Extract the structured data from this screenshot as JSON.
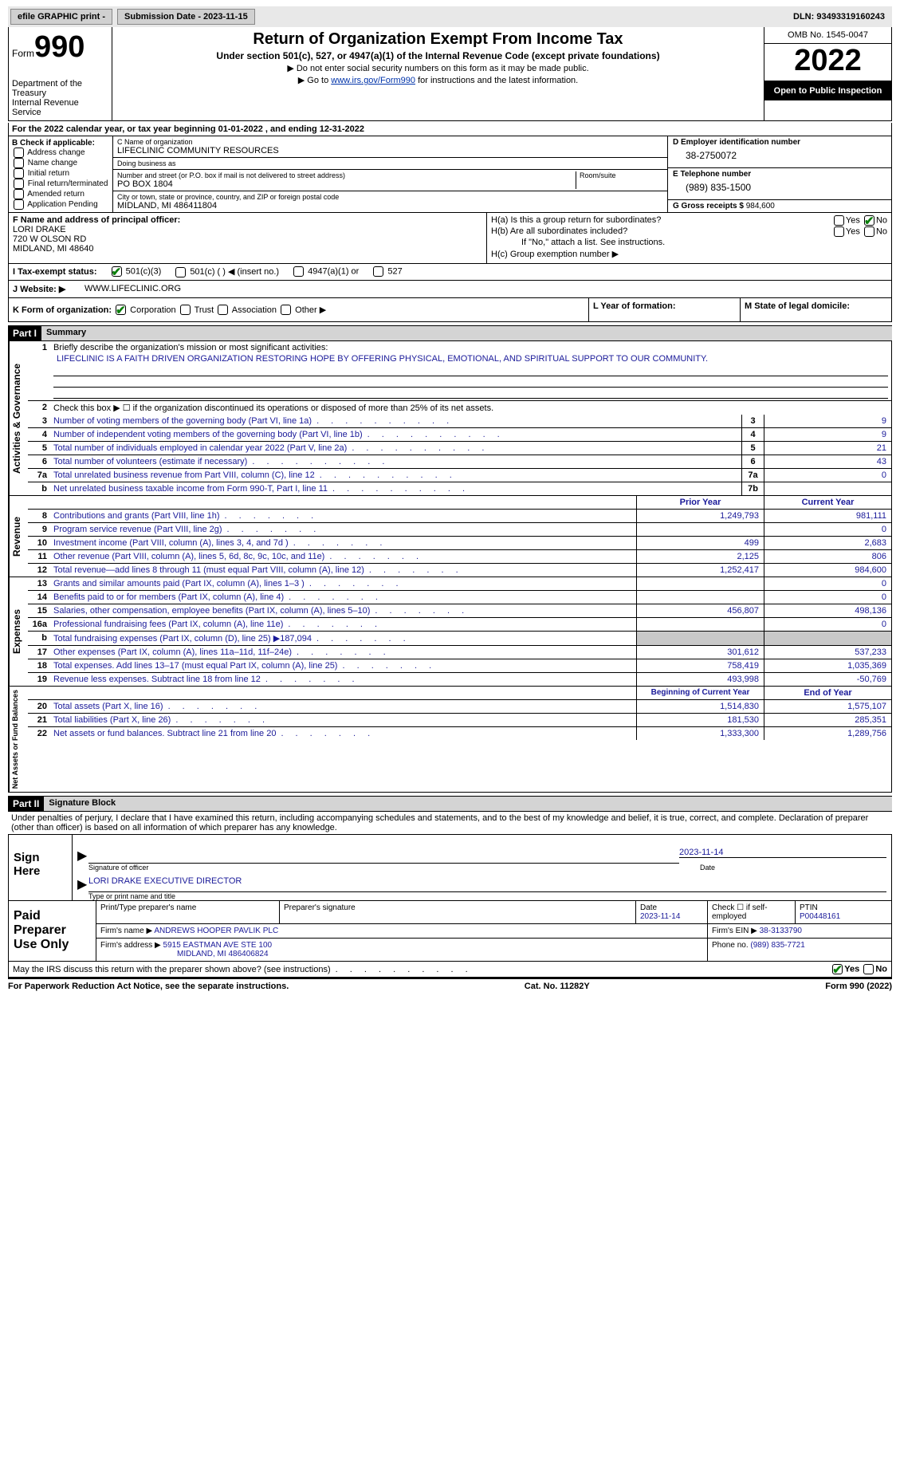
{
  "top": {
    "efile": "efile GRAPHIC print - ",
    "submission_label": "Submission Date - 2023-11-15",
    "dln": "DLN: 93493319160243"
  },
  "header": {
    "form_word": "Form",
    "form_no": "990",
    "title": "Return of Organization Exempt From Income Tax",
    "sub1": "Under section 501(c), 527, or 4947(a)(1) of the Internal Revenue Code (except private foundations)",
    "sub2": "▶ Do not enter social security numbers on this form as it may be made public.",
    "sub3_a": "▶ Go to ",
    "sub3_link": "www.irs.gov/Form990",
    "sub3_b": " for instructions and the latest information.",
    "dept": "Department of the Treasury\nInternal Revenue Service",
    "omb": "OMB No. 1545-0047",
    "year": "2022",
    "inspect": "Open to Public Inspection"
  },
  "A": "For the 2022 calendar year, or tax year beginning 01-01-2022     , and ending 12-31-2022",
  "B": {
    "hd": "B Check if applicable:",
    "items": [
      "Address change",
      "Name change",
      "Initial return",
      "Final return/terminated",
      "Amended return",
      "Application Pending"
    ]
  },
  "C": {
    "name_lbl": "C Name of organization",
    "name": "LIFECLINIC COMMUNITY RESOURCES",
    "dba_lbl": "Doing business as",
    "dba": "",
    "street_lbl": "Number and street (or P.O. box if mail is not delivered to street address)",
    "street": "PO BOX 1804",
    "room_lbl": "Room/suite",
    "city_lbl": "City or town, state or province, country, and ZIP or foreign postal code",
    "city": "MIDLAND, MI  486411804"
  },
  "D": {
    "lbl": "D Employer identification number",
    "val": "38-2750072",
    "tel_lbl": "E Telephone number",
    "tel": "(989) 835-1500",
    "gross_lbl": "G Gross receipts $ ",
    "gross": "984,600"
  },
  "F": {
    "lbl": "F Name and address of principal officer:",
    "name": "LORI DRAKE",
    "addr1": "720 W OLSON RD",
    "addr2": "MIDLAND, MI  48640"
  },
  "H": {
    "a": "H(a)  Is this a group return for subordinates?",
    "b": "H(b)  Are all subordinates included?",
    "b_note": "If \"No,\" attach a list. See instructions.",
    "c": "H(c)  Group exemption number ▶",
    "yes": "Yes",
    "no": "No"
  },
  "I": {
    "lbl": "I    Tax-exempt status:",
    "o1": "501(c)(3)",
    "o2": "501(c) (  ) ◀ (insert no.)",
    "o3": "4947(a)(1) or",
    "o4": "527"
  },
  "J": {
    "lbl": "J   Website: ▶",
    "val": "WWW.LIFECLINIC.ORG"
  },
  "K": "K Form of organization:",
  "K_opts": [
    "Corporation",
    "Trust",
    "Association",
    "Other ▶"
  ],
  "L": "L Year of formation:",
  "M": "M State of legal domicile:",
  "part1": {
    "tag": "Part I",
    "title": "Summary"
  },
  "mission_lbl": "Briefly describe the organization's mission or most significant activities:",
  "mission": "LIFECLINIC IS A FAITH DRIVEN ORGANIZATION RESTORING HOPE BY OFFERING PHYSICAL, EMOTIONAL, AND SPIRITUAL SUPPORT TO OUR COMMUNITY.",
  "line2": "Check this box ▶ ☐ if the organization discontinued its operations or disposed of more than 25% of its net assets.",
  "gov": {
    "side": "Activities & Governance",
    "rows": [
      {
        "n": "3",
        "d": "Number of voting members of the governing body (Part VI, line 1a)",
        "box": "3",
        "v": "9"
      },
      {
        "n": "4",
        "d": "Number of independent voting members of the governing body (Part VI, line 1b)",
        "box": "4",
        "v": "9"
      },
      {
        "n": "5",
        "d": "Total number of individuals employed in calendar year 2022 (Part V, line 2a)",
        "box": "5",
        "v": "21"
      },
      {
        "n": "6",
        "d": "Total number of volunteers (estimate if necessary)",
        "box": "6",
        "v": "43"
      },
      {
        "n": "7a",
        "d": "Total unrelated business revenue from Part VIII, column (C), line 12",
        "box": "7a",
        "v": "0"
      },
      {
        "n": "b",
        "d": "Net unrelated business taxable income from Form 990-T, Part I, line 11",
        "box": "7b",
        "v": ""
      }
    ]
  },
  "rev": {
    "side": "Revenue",
    "hdr1": "Prior Year",
    "hdr2": "Current Year",
    "rows": [
      {
        "n": "8",
        "d": "Contributions and grants (Part VIII, line 1h)",
        "c1": "1,249,793",
        "c2": "981,111"
      },
      {
        "n": "9",
        "d": "Program service revenue (Part VIII, line 2g)",
        "c1": "",
        "c2": "0"
      },
      {
        "n": "10",
        "d": "Investment income (Part VIII, column (A), lines 3, 4, and 7d )",
        "c1": "499",
        "c2": "2,683"
      },
      {
        "n": "11",
        "d": "Other revenue (Part VIII, column (A), lines 5, 6d, 8c, 9c, 10c, and 11e)",
        "c1": "2,125",
        "c2": "806"
      },
      {
        "n": "12",
        "d": "Total revenue—add lines 8 through 11 (must equal Part VIII, column (A), line 12)",
        "c1": "1,252,417",
        "c2": "984,600"
      }
    ]
  },
  "exp": {
    "side": "Expenses",
    "rows": [
      {
        "n": "13",
        "d": "Grants and similar amounts paid (Part IX, column (A), lines 1–3 )",
        "c1": "",
        "c2": "0"
      },
      {
        "n": "14",
        "d": "Benefits paid to or for members (Part IX, column (A), line 4)",
        "c1": "",
        "c2": "0"
      },
      {
        "n": "15",
        "d": "Salaries, other compensation, employee benefits (Part IX, column (A), lines 5–10)",
        "c1": "456,807",
        "c2": "498,136"
      },
      {
        "n": "16a",
        "d": "Professional fundraising fees (Part IX, column (A), line 11e)",
        "c1": "",
        "c2": "0"
      },
      {
        "n": "b",
        "d": "Total fundraising expenses (Part IX, column (D), line 25) ▶187,094",
        "c1": "GRAY",
        "c2": "GRAY"
      },
      {
        "n": "17",
        "d": "Other expenses (Part IX, column (A), lines 11a–11d, 11f–24e)",
        "c1": "301,612",
        "c2": "537,233"
      },
      {
        "n": "18",
        "d": "Total expenses. Add lines 13–17 (must equal Part IX, column (A), line 25)",
        "c1": "758,419",
        "c2": "1,035,369"
      },
      {
        "n": "19",
        "d": "Revenue less expenses. Subtract line 18 from line 12",
        "c1": "493,998",
        "c2": "-50,769"
      }
    ]
  },
  "net": {
    "side": "Net Assets or Fund Balances",
    "hdr1": "Beginning of Current Year",
    "hdr2": "End of Year",
    "rows": [
      {
        "n": "20",
        "d": "Total assets (Part X, line 16)",
        "c1": "1,514,830",
        "c2": "1,575,107"
      },
      {
        "n": "21",
        "d": "Total liabilities (Part X, line 26)",
        "c1": "181,530",
        "c2": "285,351"
      },
      {
        "n": "22",
        "d": "Net assets or fund balances. Subtract line 21 from line 20",
        "c1": "1,333,300",
        "c2": "1,289,756"
      }
    ]
  },
  "part2": {
    "tag": "Part II",
    "title": "Signature Block"
  },
  "sig_decl": "Under penalties of perjury, I declare that I have examined this return, including accompanying schedules and statements, and to the best of my knowledge and belief, it is true, correct, and complete. Declaration of preparer (other than officer) is based on all information of which preparer has any knowledge.",
  "sig": {
    "here": "Sign Here",
    "off_cap": "Signature of officer",
    "date": "2023-11-14",
    "date_cap": "Date",
    "name": "LORI DRAKE EXECUTIVE DIRECTOR",
    "name_cap": "Type or print name and title"
  },
  "prep": {
    "label": "Paid Preparer Use Only",
    "h1": "Print/Type preparer's name",
    "h2": "Preparer's signature",
    "h3": "Date",
    "date": "2023-11-14",
    "h4": "Check ☐ if self-employed",
    "h5": "PTIN",
    "ptin": "P00448161",
    "firm_lbl": "Firm's name      ▶ ",
    "firm": "ANDREWS HOOPER PAVLIK PLC",
    "ein_lbl": "Firm's EIN ▶ ",
    "ein": "38-3133790",
    "addr_lbl": "Firm's address ▶ ",
    "addr1": "5915 EASTMAN AVE STE 100",
    "addr2": "MIDLAND, MI  486406824",
    "phone_lbl": "Phone no. ",
    "phone": "(989) 835-7721"
  },
  "footq": "May the IRS discuss this return with the preparer shown above? (see instructions)",
  "foot": {
    "l": "For Paperwork Reduction Act Notice, see the separate instructions.",
    "m": "Cat. No. 11282Y",
    "r": "Form 990 (2022)"
  }
}
